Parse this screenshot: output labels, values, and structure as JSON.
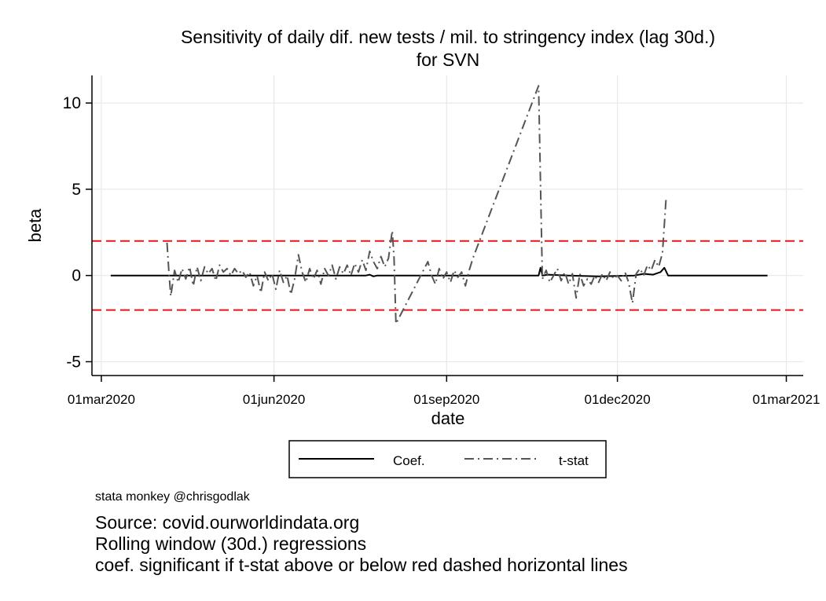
{
  "chart_data": {
    "type": "line",
    "title": "Sensitivity of daily dif. new tests / mil. to stringency index (lag 30d.)",
    "subtitle": "for SVN",
    "xlabel": "date",
    "ylabel": "beta",
    "x_range": [
      "2020-02-25",
      "2021-03-10"
    ],
    "ylim": [
      -5.8,
      11.6
    ],
    "x_ticks": [
      "01mar2020",
      "01jun2020",
      "01sep2020",
      "01dec2020",
      "01mar2021"
    ],
    "x_tick_dates": [
      "2020-03-01",
      "2020-06-01",
      "2020-09-01",
      "2020-12-01",
      "2021-03-01"
    ],
    "y_ticks": [
      -5,
      0,
      5,
      10
    ],
    "grid": true,
    "reference_lines": [
      {
        "y": 2,
        "color": "#e8141b",
        "style": "dashed"
      },
      {
        "y": -2,
        "color": "#e8141b",
        "style": "dashed"
      }
    ],
    "legend_position": "bottom",
    "series": [
      {
        "name": "Coef.",
        "color": "#000000",
        "style": "solid",
        "points": [
          [
            "2020-03-06",
            0.0
          ],
          [
            "2020-06-01",
            0.0
          ],
          [
            "2020-07-20",
            0.0
          ],
          [
            "2020-07-22",
            0.05
          ],
          [
            "2020-07-24",
            -0.05
          ],
          [
            "2020-07-26",
            0.0
          ],
          [
            "2020-10-20",
            0.0
          ],
          [
            "2020-10-21",
            0.45
          ],
          [
            "2020-10-22",
            0.0
          ],
          [
            "2020-10-25",
            0.05
          ],
          [
            "2020-11-05",
            0.0
          ],
          [
            "2020-11-20",
            -0.05
          ],
          [
            "2020-12-10",
            0.0
          ],
          [
            "2020-12-15",
            0.1
          ],
          [
            "2020-12-20",
            0.05
          ],
          [
            "2020-12-24",
            0.2
          ],
          [
            "2020-12-26",
            0.45
          ],
          [
            "2020-12-28",
            0.0
          ],
          [
            "2021-02-19",
            0.0
          ]
        ]
      },
      {
        "name": "t-stat",
        "color": "#555555",
        "style": "dash-dot",
        "points": [
          [
            "2020-04-05",
            1.9
          ],
          [
            "2020-04-06",
            0.2
          ],
          [
            "2020-04-07",
            -1.2
          ],
          [
            "2020-04-09",
            0.3
          ],
          [
            "2020-04-11",
            -0.4
          ],
          [
            "2020-04-13",
            0.4
          ],
          [
            "2020-04-15",
            -0.2
          ],
          [
            "2020-04-17",
            0.5
          ],
          [
            "2020-04-19",
            -0.6
          ],
          [
            "2020-04-21",
            0.5
          ],
          [
            "2020-04-23",
            -0.3
          ],
          [
            "2020-04-25",
            0.5
          ],
          [
            "2020-04-27",
            0.1
          ],
          [
            "2020-04-29",
            0.4
          ],
          [
            "2020-05-01",
            -0.3
          ],
          [
            "2020-05-03",
            0.6
          ],
          [
            "2020-05-05",
            0.2
          ],
          [
            "2020-05-07",
            0.4
          ],
          [
            "2020-05-09",
            0.0
          ],
          [
            "2020-05-11",
            0.4
          ],
          [
            "2020-05-13",
            0.1
          ],
          [
            "2020-05-15",
            0.3
          ],
          [
            "2020-05-17",
            -0.1
          ],
          [
            "2020-05-19",
            0.2
          ],
          [
            "2020-05-21",
            -0.6
          ],
          [
            "2020-05-23",
            0.0
          ],
          [
            "2020-05-25",
            -1.0
          ],
          [
            "2020-05-27",
            0.2
          ],
          [
            "2020-05-29",
            -0.3
          ],
          [
            "2020-05-31",
            0.1
          ],
          [
            "2020-06-02",
            -0.8
          ],
          [
            "2020-06-04",
            0.3
          ],
          [
            "2020-06-06",
            -0.4
          ],
          [
            "2020-06-08",
            0.0
          ],
          [
            "2020-06-10",
            -1.1
          ],
          [
            "2020-06-12",
            -0.2
          ],
          [
            "2020-06-14",
            1.2
          ],
          [
            "2020-06-16",
            0.2
          ],
          [
            "2020-06-18",
            -0.4
          ],
          [
            "2020-06-20",
            0.4
          ],
          [
            "2020-06-22",
            -0.2
          ],
          [
            "2020-06-24",
            0.3
          ],
          [
            "2020-06-26",
            -0.5
          ],
          [
            "2020-06-28",
            0.4
          ],
          [
            "2020-06-30",
            0.0
          ],
          [
            "2020-07-02",
            0.6
          ],
          [
            "2020-07-04",
            -0.2
          ],
          [
            "2020-07-06",
            0.5
          ],
          [
            "2020-07-08",
            0.1
          ],
          [
            "2020-07-10",
            0.6
          ],
          [
            "2020-07-12",
            0.0
          ],
          [
            "2020-07-14",
            0.7
          ],
          [
            "2020-07-16",
            0.2
          ],
          [
            "2020-07-18",
            0.9
          ],
          [
            "2020-07-20",
            0.3
          ],
          [
            "2020-07-22",
            1.4
          ],
          [
            "2020-07-24",
            0.8
          ],
          [
            "2020-07-26",
            0.4
          ],
          [
            "2020-07-28",
            1.1
          ],
          [
            "2020-07-30",
            0.5
          ],
          [
            "2020-08-01",
            1.0
          ],
          [
            "2020-08-03",
            2.6
          ],
          [
            "2020-08-04",
            1.0
          ],
          [
            "2020-08-05",
            -2.8
          ],
          [
            "2020-08-22",
            0.8
          ],
          [
            "2020-08-24",
            0.0
          ],
          [
            "2020-08-26",
            -0.5
          ],
          [
            "2020-08-28",
            0.4
          ],
          [
            "2020-08-30",
            -0.2
          ],
          [
            "2020-09-01",
            0.2
          ],
          [
            "2020-09-03",
            -0.4
          ],
          [
            "2020-09-05",
            0.3
          ],
          [
            "2020-09-07",
            -0.1
          ],
          [
            "2020-09-09",
            0.2
          ],
          [
            "2020-09-11",
            -0.6
          ],
          [
            "2020-09-13",
            0.3
          ],
          [
            "2020-09-15",
            1.0
          ],
          [
            "2020-10-20",
            11.0
          ],
          [
            "2020-10-22",
            -0.2
          ],
          [
            "2020-10-24",
            0.3
          ],
          [
            "2020-10-26",
            -0.4
          ],
          [
            "2020-10-28",
            0.0
          ],
          [
            "2020-10-30",
            0.4
          ],
          [
            "2020-11-01",
            -0.3
          ],
          [
            "2020-11-03",
            0.2
          ],
          [
            "2020-11-05",
            -0.5
          ],
          [
            "2020-11-07",
            0.1
          ],
          [
            "2020-11-09",
            -1.3
          ],
          [
            "2020-11-11",
            0.1
          ],
          [
            "2020-11-13",
            -0.6
          ],
          [
            "2020-11-15",
            -0.2
          ],
          [
            "2020-11-17",
            -0.5
          ],
          [
            "2020-11-19",
            0.0
          ],
          [
            "2020-11-21",
            -0.4
          ],
          [
            "2020-11-23",
            0.1
          ],
          [
            "2020-11-25",
            -0.3
          ],
          [
            "2020-11-27",
            0.2
          ],
          [
            "2020-11-29",
            -0.2
          ],
          [
            "2020-12-01",
            0.0
          ],
          [
            "2020-12-03",
            -0.3
          ],
          [
            "2020-12-05",
            0.2
          ],
          [
            "2020-12-07",
            -0.4
          ],
          [
            "2020-12-09",
            -1.6
          ],
          [
            "2020-12-11",
            0.1
          ],
          [
            "2020-12-13",
            0.4
          ],
          [
            "2020-12-15",
            0.0
          ],
          [
            "2020-12-17",
            0.6
          ],
          [
            "2020-12-19",
            0.3
          ],
          [
            "2020-12-21",
            0.9
          ],
          [
            "2020-12-23",
            0.5
          ],
          [
            "2020-12-25",
            1.3
          ],
          [
            "2020-12-27",
            4.6
          ]
        ]
      }
    ]
  },
  "legend": {
    "items": [
      {
        "label": "Coef."
      },
      {
        "label": "t-stat"
      }
    ]
  },
  "notes": {
    "credit": "stata monkey @chrisgodlak",
    "source": "Source: covid.ourworldindata.org",
    "method": "Rolling window (30d.) regressions",
    "significance": "coef. significant if t-stat above or below red dashed horizontal lines"
  }
}
